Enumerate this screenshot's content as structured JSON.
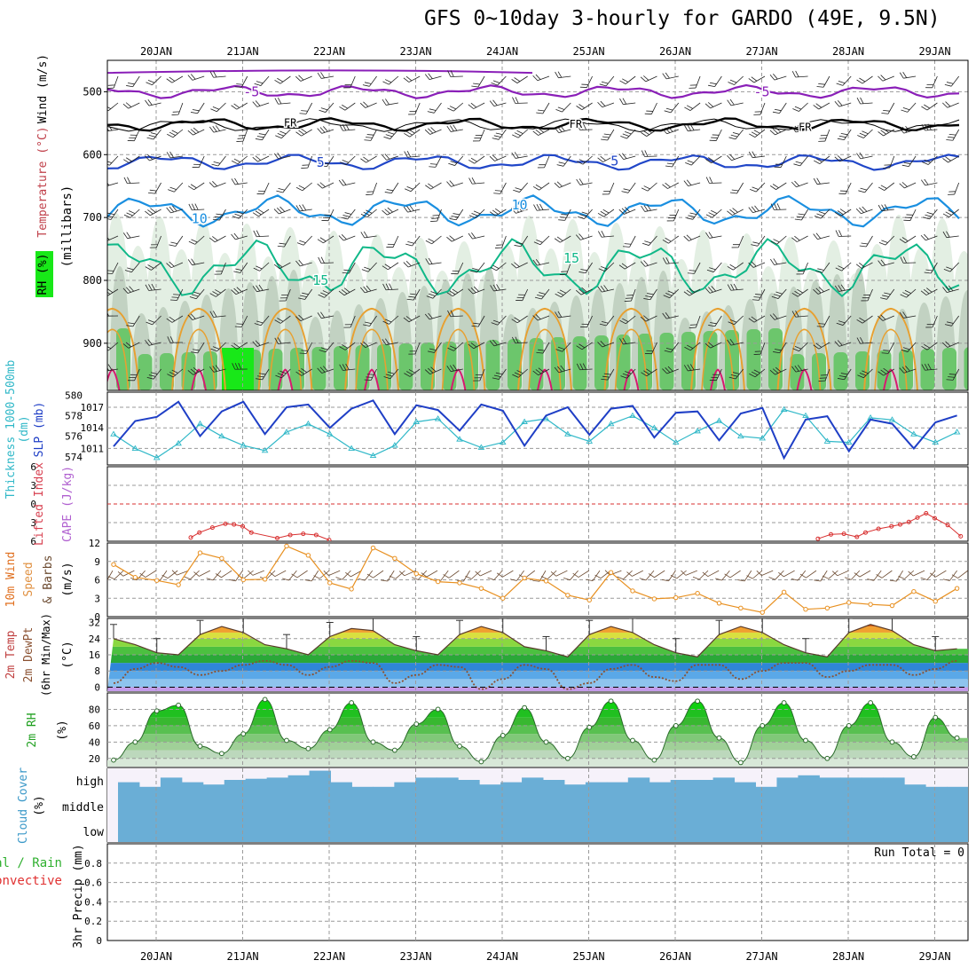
{
  "title": "GFS 0~10day 3-hourly for GARDO (49E, 9.5N)",
  "colors": {
    "grid": "#9a9a9a",
    "temp_minus5": "#8a1fb8",
    "temp_fr": "#000000",
    "temp_5": "#2046c8",
    "temp_10": "#1a8fe0",
    "temp_15": "#10b888",
    "temp_20": "#e8a030",
    "temp_25": "#d81870",
    "rh_light": "#e3efe3",
    "rh_mid": "#c2d2c2",
    "rh_green": "#6cc66c",
    "rh_bright": "#18e818",
    "slp": "#1f3fc6",
    "thickness": "#30b8c8",
    "lifted": "#d83030",
    "wind10": "#e89020",
    "cloud": "#6aaed6",
    "dewpoint": "#8a5030"
  },
  "chart_data": [
    {
      "panel": "upper_air",
      "type": "heatmap",
      "x_ticks": [
        "20JAN",
        "21JAN",
        "22JAN",
        "23JAN",
        "24JAN",
        "25JAN",
        "26JAN",
        "27JAN",
        "28JAN",
        "29JAN"
      ],
      "ylabel": "(millibars)",
      "side_labels": [
        "Wind (m/s)",
        "Temperature (°C)",
        "RH (%)"
      ],
      "y_ticks": [
        500,
        600,
        700,
        800,
        900
      ],
      "ylim": [
        450,
        975
      ],
      "isotherm_labels": [
        {
          "text": "-5",
          "day": 1.1,
          "p": 500
        },
        {
          "text": "-5",
          "day": 7.0,
          "p": 500
        },
        {
          "text": "FR",
          "day": 1.55,
          "p": 548
        },
        {
          "text": "FR",
          "day": 4.85,
          "p": 550
        },
        {
          "text": "FR",
          "day": 7.5,
          "p": 555
        },
        {
          "text": "5",
          "day": 1.9,
          "p": 612
        },
        {
          "text": "5",
          "day": 5.3,
          "p": 610
        },
        {
          "text": "10",
          "day": 0.5,
          "p": 702
        },
        {
          "text": "10",
          "day": 4.2,
          "p": 680
        },
        {
          "text": "15",
          "day": 1.9,
          "p": 800
        },
        {
          "text": "15",
          "day": 4.8,
          "p": 765
        }
      ]
    },
    {
      "panel": "slp_thickness",
      "type": "line",
      "x_days": [
        0,
        0.25,
        0.5,
        0.75,
        1,
        1.25,
        1.5,
        1.75,
        2,
        2.25,
        2.5,
        2.75,
        3,
        3.25,
        3.5,
        3.75,
        4,
        4.25,
        4.5,
        4.75,
        5,
        5.25,
        5.5,
        5.75,
        6,
        6.25,
        6.5,
        6.75,
        7,
        7.25,
        7.5,
        7.75,
        8,
        8.25,
        8.5,
        8.75,
        9,
        9.25,
        9.5,
        9.75
      ],
      "series": [
        {
          "name": "SLP (mb)",
          "axis": "right",
          "values": [
            1011.3,
            1015.0,
            1015.6,
            1017.8,
            1012.8,
            1016.4,
            1017.8,
            1013.1,
            1017.0,
            1017.4,
            1014.0,
            1016.8,
            1018.0,
            1013.1,
            1017.3,
            1016.6,
            1013.6,
            1017.4,
            1016.5,
            1011.4,
            1015.8,
            1017.0,
            1013.0,
            1016.8,
            1017.2,
            1012.6,
            1016.2,
            1016.4,
            1012.2,
            1016.1,
            1016.9,
            1009.6,
            1015.2,
            1015.7,
            1010.6,
            1015.2,
            1014.6,
            1011.0,
            1014.8,
            1015.8
          ]
        },
        {
          "name": "Thickness 1000-500mb (dm)",
          "axis": "left",
          "values": [
            576.2,
            574.8,
            573.9,
            575.3,
            577.2,
            576.0,
            575.1,
            574.6,
            576.4,
            577.2,
            576.2,
            574.8,
            574.1,
            575.1,
            577.4,
            577.7,
            575.7,
            574.9,
            575.4,
            577.4,
            577.7,
            576.2,
            575.5,
            577.2,
            578.0,
            576.8,
            575.4,
            576.5,
            577.5,
            576.0,
            575.8,
            578.6,
            578.0,
            575.5,
            575.4,
            577.8,
            577.6,
            576.2,
            575.4,
            576.4
          ]
        }
      ],
      "left_ticks": [
        574,
        576,
        578,
        580
      ],
      "right_ticks": [
        1011,
        1014,
        1017
      ]
    },
    {
      "panel": "cape_lifted",
      "type": "line",
      "ylabel_left": "Lifted Index",
      "ylabel_right": "CAPE (J/kg)",
      "left_ticks": [
        -6,
        -3,
        0,
        3,
        6
      ],
      "left_tick_labels": [
        "6",
        "3",
        "0",
        "3",
        "6"
      ],
      "series": [
        {
          "name": "Lifted Index",
          "points": [
            [
              0.4,
              5.4
            ],
            [
              0.5,
              4.6
            ],
            [
              0.65,
              3.8
            ],
            [
              0.8,
              3.2
            ],
            [
              0.9,
              3.3
            ],
            [
              1.0,
              3.6
            ],
            [
              1.1,
              4.6
            ],
            [
              1.4,
              5.5
            ],
            [
              1.55,
              5.0
            ],
            [
              1.7,
              4.8
            ],
            [
              1.85,
              5.0
            ],
            [
              2.0,
              5.8
            ],
            [
              7.65,
              5.6
            ],
            [
              7.8,
              4.9
            ],
            [
              7.95,
              4.8
            ],
            [
              8.1,
              5.3
            ],
            [
              8.2,
              4.6
            ],
            [
              8.35,
              4.0
            ],
            [
              8.5,
              3.6
            ],
            [
              8.6,
              3.3
            ],
            [
              8.7,
              2.9
            ],
            [
              8.8,
              2.2
            ],
            [
              8.9,
              1.5
            ],
            [
              9.0,
              2.3
            ],
            [
              9.15,
              3.4
            ],
            [
              9.3,
              5.2
            ]
          ]
        }
      ],
      "ylim": [
        -6,
        6
      ]
    },
    {
      "panel": "wind10m",
      "type": "line",
      "ylabel": "10m Wind Speed & Barbs (m/s)",
      "y_ticks": [
        0,
        3,
        6,
        9,
        12
      ],
      "ylim": [
        0,
        12
      ],
      "x_days": [
        0,
        0.25,
        0.5,
        0.75,
        1,
        1.25,
        1.5,
        1.75,
        2,
        2.25,
        2.5,
        2.75,
        3,
        3.25,
        3.5,
        3.75,
        4,
        4.25,
        4.5,
        4.75,
        5,
        5.25,
        5.5,
        5.75,
        6,
        6.25,
        6.5,
        6.75,
        7,
        7.25,
        7.5,
        7.75,
        8,
        8.25,
        8.5,
        8.75,
        9,
        9.25,
        9.5,
        9.75
      ],
      "values": [
        8.5,
        6.4,
        5.9,
        5.2,
        10.4,
        9.5,
        6.0,
        6.1,
        11.5,
        10.0,
        5.5,
        4.5,
        11.2,
        9.5,
        7.0,
        5.7,
        5.5,
        4.6,
        3.0,
        6.3,
        5.8,
        3.5,
        2.7,
        7.2,
        4.2,
        2.9,
        3.1,
        3.8,
        2.2,
        1.4,
        0.7,
        4.0,
        1.2,
        1.4,
        2.3,
        2.0,
        1.8,
        4.1,
        2.5,
        4.6
      ]
    },
    {
      "panel": "temp2m",
      "type": "area",
      "ylabel": "2m Temp 2m DewPt (6hr Min/Max) (°C)",
      "y_ticks": [
        0,
        8,
        16,
        24,
        32
      ],
      "ylim": [
        -2,
        34
      ],
      "x_days": [
        0,
        0.25,
        0.5,
        0.75,
        1,
        1.25,
        1.5,
        1.75,
        2,
        2.25,
        2.5,
        2.75,
        3,
        3.25,
        3.5,
        3.75,
        4,
        4.25,
        4.5,
        4.75,
        5,
        5.25,
        5.5,
        5.75,
        6,
        6.25,
        6.5,
        6.75,
        7,
        7.25,
        7.5,
        7.75,
        8,
        8.25,
        8.5,
        8.75,
        9,
        9.25,
        9.5,
        9.75
      ],
      "series": [
        {
          "name": "2m Temp",
          "values": [
            24,
            21,
            17,
            16,
            26,
            30,
            27,
            21,
            19,
            16,
            25,
            29,
            28,
            21,
            18,
            16,
            26,
            30,
            27,
            20,
            18,
            15,
            26,
            30,
            27,
            21,
            17,
            15,
            26,
            30,
            27,
            21,
            17,
            15,
            27,
            31,
            28,
            21,
            18,
            19
          ]
        },
        {
          "name": "2m DewPt",
          "values": [
            2,
            9,
            12,
            10,
            6,
            8,
            11,
            13,
            11,
            6,
            10,
            13,
            12,
            2,
            6,
            11,
            10,
            -1,
            4,
            11,
            9,
            -1,
            2,
            9,
            11,
            5,
            3,
            11,
            11,
            4,
            8,
            12,
            12,
            5,
            8,
            11,
            11,
            6,
            9,
            13
          ]
        }
      ]
    },
    {
      "panel": "rh2m",
      "type": "area",
      "ylabel": "2m RH (%)",
      "y_ticks": [
        20,
        40,
        60,
        80
      ],
      "ylim": [
        10,
        100
      ],
      "x_days": [
        0,
        0.25,
        0.5,
        0.75,
        1,
        1.25,
        1.5,
        1.75,
        2,
        2.25,
        2.5,
        2.75,
        3,
        3.25,
        3.5,
        3.75,
        4,
        4.25,
        4.5,
        4.75,
        5,
        5.25,
        5.5,
        5.75,
        6,
        6.25,
        6.5,
        6.75,
        7,
        7.25,
        7.5,
        7.75,
        8,
        8.25,
        8.5,
        8.75,
        9,
        9.25,
        9.5,
        9.75
      ],
      "values": [
        18,
        40,
        78,
        85,
        35,
        26,
        50,
        92,
        42,
        32,
        55,
        88,
        40,
        30,
        62,
        80,
        35,
        16,
        48,
        82,
        40,
        20,
        58,
        90,
        42,
        18,
        60,
        90,
        45,
        15,
        60,
        88,
        42,
        20,
        60,
        88,
        40,
        22,
        70,
        45
      ]
    },
    {
      "panel": "cloud",
      "type": "bar",
      "ylabel": "Cloud Cover (%)",
      "y_tick_labels": [
        "high",
        "middle",
        "low"
      ],
      "high_values": [
        40,
        20,
        60,
        40,
        30,
        50,
        55,
        60,
        70,
        90,
        40,
        20,
        20,
        40,
        60,
        60,
        50,
        30,
        40,
        60,
        50,
        30,
        40,
        40,
        60,
        40,
        50,
        50,
        60,
        40,
        20,
        60,
        70,
        60,
        60,
        60,
        60,
        30,
        20,
        20
      ]
    },
    {
      "panel": "precip",
      "type": "bar",
      "ylabel": "3hr Precip (mm)",
      "side_labels": [
        "Total / Rain",
        "Convective"
      ],
      "y_ticks": [
        0,
        0.2,
        0.4,
        0.6,
        0.8
      ],
      "ylim": [
        0,
        1
      ],
      "annotation": "Run Total = 0",
      "values": []
    }
  ]
}
